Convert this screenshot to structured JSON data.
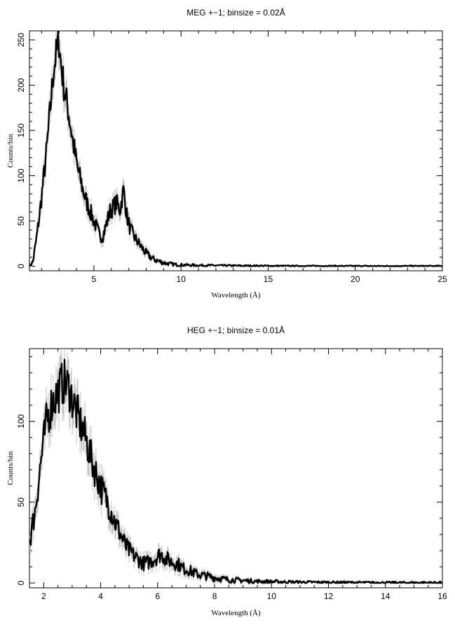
{
  "chart_data": [
    {
      "type": "line",
      "title": "MEG +−1; binsize = 0.02Å",
      "xlabel": "Wavelength (Å)",
      "ylabel": "Counts/bin",
      "xlim": [
        1.3,
        25
      ],
      "ylim": [
        -5,
        260
      ],
      "xticks": [
        5,
        10,
        15,
        20,
        25
      ],
      "yticks": [
        0,
        50,
        100,
        150,
        200,
        250
      ],
      "x": [
        1.3,
        1.5,
        1.7,
        1.9,
        2.1,
        2.3,
        2.5,
        2.7,
        2.9,
        3.0,
        3.1,
        3.3,
        3.5,
        3.7,
        3.9,
        4.1,
        4.3,
        4.5,
        4.7,
        4.9,
        5.1,
        5.3,
        5.5,
        5.7,
        5.9,
        6.1,
        6.3,
        6.5,
        6.7,
        6.9,
        7.1,
        7.4,
        7.7,
        8.0,
        8.4,
        8.8,
        9.2,
        9.6,
        10.0,
        10.5,
        11.0,
        12.0,
        13.0,
        14.0,
        15.0,
        16.0,
        18.0,
        20.0,
        22.0,
        25.0
      ],
      "y": [
        0,
        5,
        30,
        60,
        95,
        130,
        175,
        220,
        240,
        250,
        225,
        195,
        175,
        150,
        125,
        105,
        90,
        75,
        65,
        55,
        45,
        35,
        33,
        45,
        60,
        65,
        70,
        62,
        85,
        55,
        40,
        30,
        22,
        14,
        8,
        5,
        3,
        2,
        1.5,
        1.2,
        1,
        0.8,
        0.6,
        0.5,
        0.4,
        0.3,
        0.3,
        0.2,
        0.2,
        0.2
      ]
    },
    {
      "type": "line",
      "title": "HEG +−1; binsize = 0.01Å",
      "xlabel": "Wavelength (Å)",
      "ylabel": "Counts/bin",
      "xlim": [
        1.5,
        16
      ],
      "ylim": [
        -3,
        145
      ],
      "xticks": [
        2,
        4,
        6,
        8,
        10,
        12,
        14,
        16
      ],
      "yticks": [
        0,
        50,
        100
      ],
      "x": [
        1.5,
        1.7,
        1.9,
        2.1,
        2.3,
        2.5,
        2.7,
        2.9,
        3.1,
        3.3,
        3.5,
        3.7,
        3.9,
        4.1,
        4.3,
        4.5,
        4.7,
        4.9,
        5.1,
        5.3,
        5.5,
        5.7,
        5.9,
        6.1,
        6.3,
        6.5,
        6.7,
        6.9,
        7.1,
        7.3,
        7.5,
        7.8,
        8.1,
        8.5,
        9.0,
        9.5,
        10.0,
        11.0,
        12.0,
        13.0,
        14.0,
        15.0,
        16.0
      ],
      "y": [
        25,
        45,
        75,
        100,
        112,
        118,
        125,
        120,
        108,
        98,
        88,
        75,
        65,
        55,
        48,
        38,
        30,
        22,
        18,
        15,
        12,
        13,
        15,
        18,
        15,
        13,
        12,
        9,
        8,
        6,
        5,
        4,
        3,
        2,
        1.5,
        1,
        0.8,
        0.5,
        0.4,
        0.3,
        0.2,
        0.2,
        0.2
      ]
    }
  ]
}
